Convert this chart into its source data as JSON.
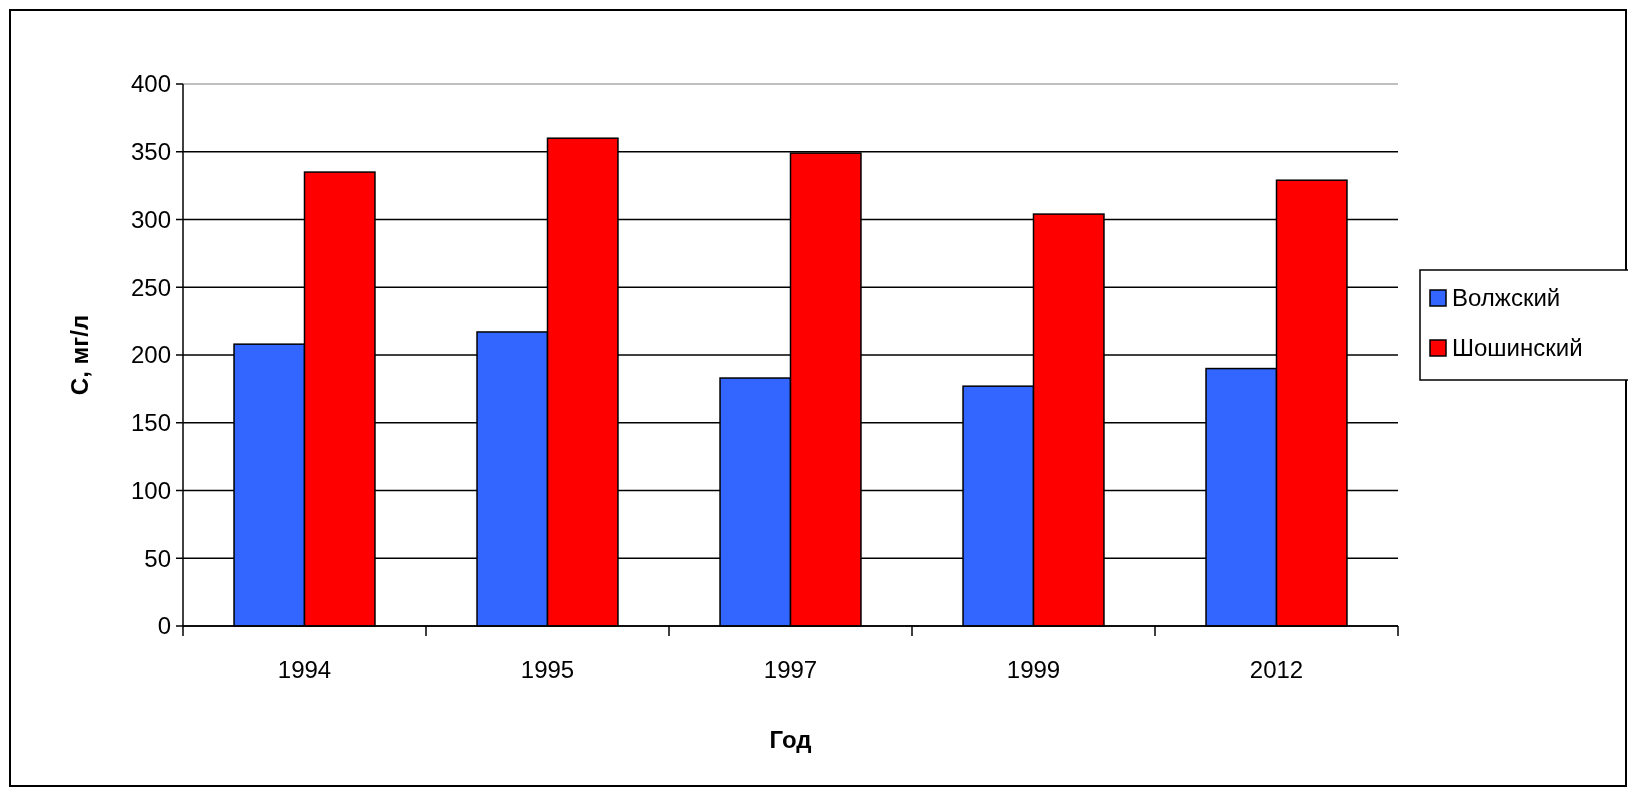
{
  "chart_data": {
    "type": "bar",
    "xlabel": "Год",
    "ylabel": "С,  мг/л",
    "categories": [
      "1994",
      "1995",
      "1997",
      "1999",
      "2012"
    ],
    "series": [
      {
        "name": "Волжский",
        "color": "#3366ff",
        "values": [
          208,
          217,
          183,
          177,
          190
        ]
      },
      {
        "name": "Шошинский",
        "color": "#ff0000",
        "values": [
          335,
          360,
          349,
          304,
          329
        ]
      }
    ],
    "ylim": [
      0,
      400
    ],
    "yticks": [
      0,
      50,
      100,
      150,
      200,
      250,
      300,
      350,
      400
    ],
    "grid": "y",
    "legend": "right"
  }
}
